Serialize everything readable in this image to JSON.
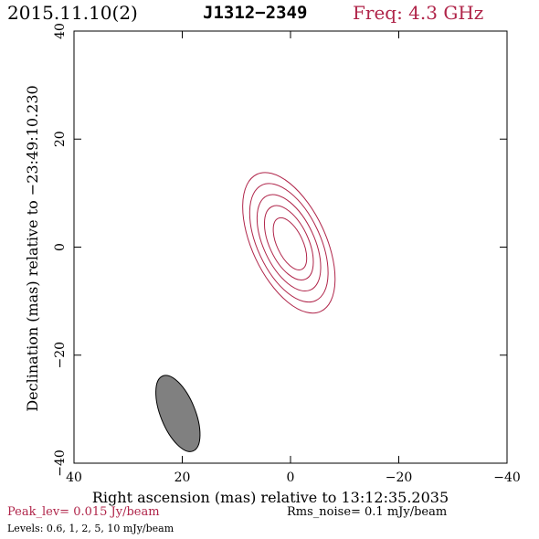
{
  "header": {
    "date": "2015.11.10(2)",
    "source": "J1312−2349",
    "freq": "Freq: 4.3 GHz"
  },
  "footer": {
    "peak": "Peak_lev=  0.015 Jy/beam",
    "rms": "Rms_noise=  0.1 mJy/beam",
    "levels": "Levels: 0.6,   1,   2,   5,  10 mJy/beam"
  },
  "colors": {
    "contour": "#b0254a",
    "beam_fill": "#808080",
    "axes": "#000000"
  },
  "chart_data": {
    "type": "contour",
    "xlabel": "Right ascension (mas) relative to 13:12:35.2035",
    "ylabel": "Declination (mas) relative to −23:49:10.230",
    "xlim": [
      40,
      -40
    ],
    "ylim": [
      -40,
      40
    ],
    "x_ticks": [
      40,
      20,
      0,
      -20,
      -40
    ],
    "y_ticks": [
      -40,
      -20,
      0,
      20,
      40
    ],
    "x_tick_labels": [
      "40",
      "20",
      "0",
      "−20",
      "−40"
    ],
    "y_tick_labels": [
      "−40",
      "−20",
      "0",
      "20",
      "40"
    ],
    "contours": [
      {
        "center": [
          0.3,
          0.8
        ],
        "half_major": 14.0,
        "half_minor": 6.8,
        "pa_deg": 25
      },
      {
        "center": [
          0.3,
          0.8
        ],
        "half_major": 11.8,
        "half_minor": 5.8,
        "pa_deg": 25
      },
      {
        "center": [
          0.3,
          0.8
        ],
        "half_major": 9.6,
        "half_minor": 4.7,
        "pa_deg": 25
      },
      {
        "center": [
          0.3,
          0.8
        ],
        "half_major": 7.4,
        "half_minor": 3.6,
        "pa_deg": 25
      },
      {
        "center": [
          0.1,
          0.6
        ],
        "half_major": 5.2,
        "half_minor": 2.4,
        "pa_deg": 25
      }
    ],
    "beam": {
      "center": [
        20.8,
        -30.8
      ],
      "half_major": 7.5,
      "half_minor": 3.2,
      "pa_deg": 22
    }
  }
}
